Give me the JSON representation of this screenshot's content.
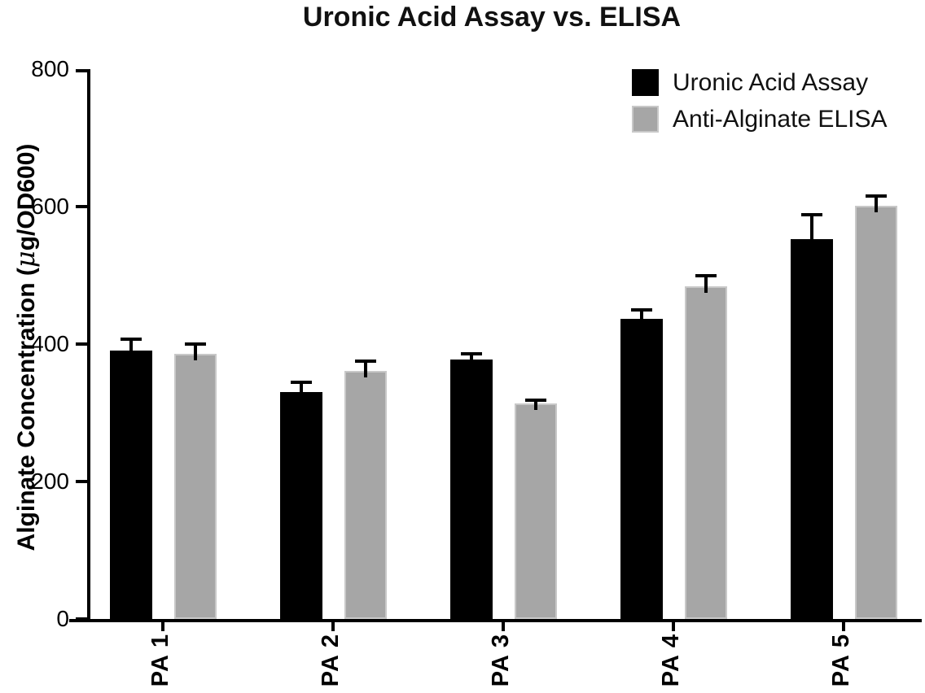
{
  "figure": {
    "background_color": "#ffffff",
    "text_color": "#000000"
  },
  "chart_data": {
    "type": "bar",
    "title": "Uronic Acid Assay vs. ELISA",
    "xlabel": "",
    "ylabel": "Alginate Concentration (μg/OD600)",
    "categories": [
      "PA 1",
      "PA 2",
      "PA 3",
      "PA 4",
      "PA 5"
    ],
    "series": [
      {
        "name": "Uronic Acid Assay",
        "color": "#000000",
        "values": [
          390,
          330,
          378,
          437,
          553
        ],
        "errors": [
          20,
          17,
          10,
          15,
          38
        ]
      },
      {
        "name": "Anti-Alginate ELISA",
        "color": "#a6a6a6",
        "border_color": "#c8c8c8",
        "values": [
          386,
          361,
          314,
          484,
          601
        ],
        "errors": [
          16,
          17,
          7,
          18,
          17
        ]
      }
    ],
    "ylim": [
      0,
      800
    ],
    "yticks": [
      0,
      200,
      400,
      600,
      800
    ],
    "error_bar_color": "#000000",
    "legend_position": "top-right",
    "grid": false
  }
}
